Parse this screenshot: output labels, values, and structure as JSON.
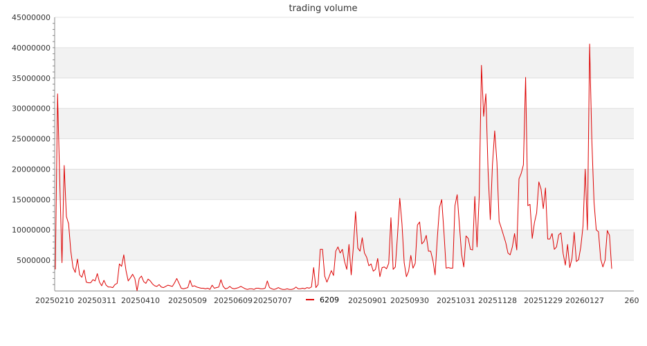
{
  "chart_data": {
    "type": "line",
    "title": "trading volume",
    "xlabel": "",
    "ylabel": "",
    "ylim": [
      0,
      45000000
    ],
    "yticks": [
      5000000,
      10000000,
      15000000,
      20000000,
      25000000,
      30000000,
      35000000,
      40000000,
      45000000
    ],
    "ytick_labels": [
      "5000000",
      "10000000",
      "15000000",
      "20000000",
      "25000000",
      "30000000",
      "35000000",
      "40000000",
      "45000000"
    ],
    "xtick_labels": [
      "20250210",
      "20250311",
      "20250410",
      "20250509",
      "20250609",
      "20250707",
      "20250901",
      "20250930",
      "20251031",
      "20251128",
      "20251229",
      "20260127",
      "260"
    ],
    "legend": {
      "position": "bottom-center"
    },
    "grid": "horizontal bands",
    "colors": {
      "line": "#dd0000",
      "band": "#f2f2f2",
      "grid": "#e0e0e0",
      "axis": "#888888"
    },
    "series": [
      {
        "name": "6209",
        "values": [
          3500000,
          32400000,
          18000000,
          4600000,
          20600000,
          12200000,
          11000000,
          6500000,
          3800000,
          3000000,
          5200000,
          2600000,
          2200000,
          3400000,
          1400000,
          1300000,
          1300000,
          1800000,
          1600000,
          2800000,
          1400000,
          800000,
          1700000,
          900000,
          600000,
          600000,
          500000,
          1000000,
          1200000,
          4400000,
          4000000,
          5900000,
          3300000,
          1600000,
          2100000,
          2700000,
          2000000,
          0,
          2000000,
          2400000,
          1500000,
          1200000,
          1900000,
          1600000,
          1100000,
          800000,
          700000,
          1000000,
          600000,
          500000,
          700000,
          900000,
          800000,
          700000,
          1300000,
          2000000,
          1200000,
          400000,
          300000,
          400000,
          500000,
          1700000,
          700000,
          800000,
          600000,
          500000,
          400000,
          400000,
          300000,
          400000,
          200000,
          900000,
          400000,
          500000,
          600000,
          1800000,
          700000,
          300000,
          400000,
          700000,
          400000,
          300000,
          400000,
          500000,
          700000,
          500000,
          300000,
          200000,
          300000,
          300000,
          200000,
          400000,
          400000,
          300000,
          300000,
          400000,
          1600000,
          500000,
          300000,
          200000,
          300000,
          500000,
          300000,
          200000,
          200000,
          300000,
          200000,
          200000,
          300000,
          600000,
          300000,
          300000,
          400000,
          300000,
          500000,
          400000,
          600000,
          3800000,
          500000,
          1000000,
          6800000,
          6800000,
          2400000,
          1400000,
          2300000,
          3300000,
          2500000,
          6500000,
          7200000,
          6200000,
          6800000,
          4800000,
          3500000,
          7600000,
          2600000,
          7300000,
          13000000,
          7000000,
          6500000,
          8700000,
          6200000,
          5500000,
          4100000,
          4400000,
          3200000,
          3500000,
          5300000,
          2300000,
          3800000,
          3900000,
          3600000,
          4500000,
          12000000,
          3500000,
          3900000,
          9200000,
          15200000,
          11000000,
          4600000,
          2300000,
          3200000,
          5800000,
          3700000,
          4500000,
          10800000,
          11300000,
          7700000,
          8100000,
          9100000,
          6500000,
          6500000,
          5000000,
          2600000,
          8600000,
          13700000,
          15000000,
          9700000,
          3700000,
          3800000,
          3700000,
          3700000,
          14000000,
          15800000,
          10900000,
          6000000,
          3900000,
          9000000,
          8600000,
          6800000,
          6700000,
          15500000,
          7200000,
          15700000,
          37100000,
          28700000,
          32400000,
          19700000,
          11700000,
          20800000,
          26300000,
          21200000,
          11400000,
          10300000,
          9100000,
          7900000,
          6200000,
          5900000,
          7200000,
          9400000,
          6700000,
          18400000,
          19300000,
          20700000,
          35100000,
          14000000,
          14200000,
          8600000,
          11200000,
          12800000,
          17900000,
          16700000,
          13500000,
          16900000,
          8500000,
          8500000,
          9400000,
          6800000,
          7200000,
          9200000,
          9500000,
          6100000,
          4200000,
          7600000,
          3800000,
          5300000,
          9600000,
          4800000,
          5100000,
          7200000,
          10600000,
          20000000,
          10000000,
          40600000,
          24700000,
          14500000,
          10000000,
          9700000,
          5200000,
          3900000,
          5000000,
          9900000,
          9100000,
          3600000
        ]
      }
    ]
  }
}
